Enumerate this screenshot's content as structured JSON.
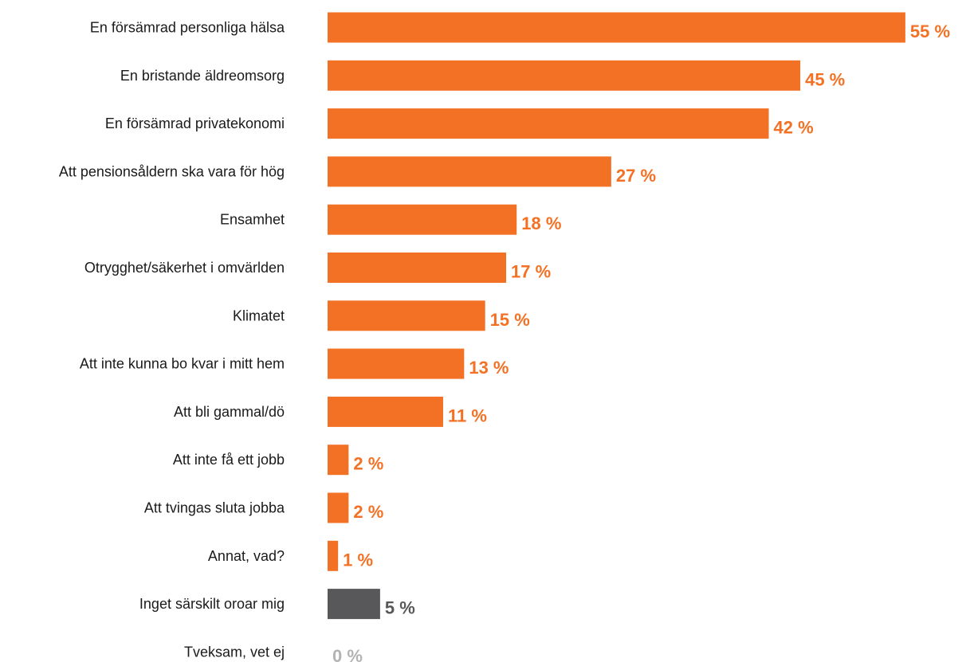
{
  "chart_data": {
    "type": "bar",
    "orientation": "horizontal",
    "title": "",
    "xlabel": "",
    "ylabel": "",
    "unit": "%",
    "grid": false,
    "legend": "none",
    "xlim": [
      0,
      55
    ],
    "categories": [
      "En försämrad personliga hälsa",
      "En bristande äldreomsorg",
      "En försämrad privatekonomi",
      "Att pensionsåldern ska vara för hög",
      "Ensamhet",
      "Otrygghet/säkerhet i omvärlden",
      "Klimatet",
      "Att inte kunna bo kvar i mitt hem",
      "Att bli gammal/dö",
      "Att inte få ett jobb",
      "Att tvingas sluta jobba",
      "Annat, vad?",
      "Inget särskilt oroar mig",
      "Tveksam, vet ej"
    ],
    "values": [
      55,
      45,
      42,
      27,
      18,
      17,
      15,
      13,
      11,
      2,
      2,
      1,
      5,
      0
    ],
    "value_labels": [
      "55 %",
      "45 %",
      "42 %",
      "27 %",
      "18 %",
      "17 %",
      "15 %",
      "13 %",
      "11 %",
      "2 %",
      "2 %",
      "1 %",
      "5 %",
      "0 %"
    ],
    "bar_colors": [
      "#f37125",
      "#f37125",
      "#f37125",
      "#f37125",
      "#f37125",
      "#f37125",
      "#f37125",
      "#f37125",
      "#f37125",
      "#f37125",
      "#f37125",
      "#f37125",
      "#58585a",
      "#b3b3b3"
    ],
    "label_colors": [
      "#f37125",
      "#f37125",
      "#f37125",
      "#f37125",
      "#f37125",
      "#f37125",
      "#f37125",
      "#f37125",
      "#f37125",
      "#f37125",
      "#f37125",
      "#f37125",
      "#58585a",
      "#b3b3b3"
    ]
  }
}
